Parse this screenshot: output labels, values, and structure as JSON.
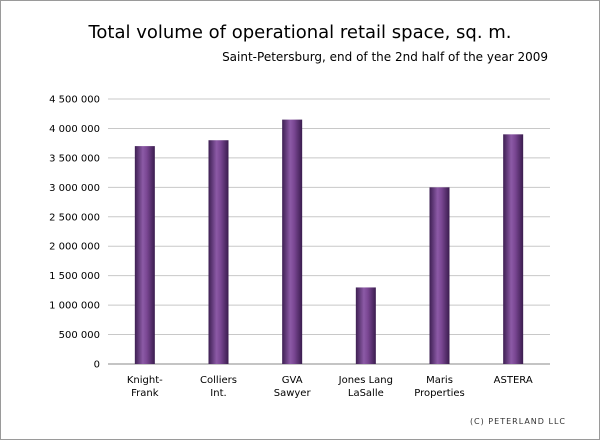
{
  "chart_data": {
    "type": "bar",
    "title": "Total volume of operational retail space, sq. m.",
    "subtitle": "Saint-Petersburg, end of the 2nd half of the year 2009",
    "credit": "(C) PETERLAND LLC",
    "categories": [
      [
        "Knight-",
        "Frank"
      ],
      [
        "Colliers",
        "Int."
      ],
      [
        "GVA",
        "Sawyer"
      ],
      [
        "Jones Lang",
        "LaSalle"
      ],
      [
        "Maris",
        "Properties"
      ],
      [
        "ASTERA"
      ]
    ],
    "values": [
      3700000,
      3800000,
      4150000,
      1300000,
      3000000,
      3900000
    ],
    "ylim": [
      0,
      4500000
    ],
    "yticks": [
      0,
      500000,
      1000000,
      1500000,
      2000000,
      2500000,
      3000000,
      3500000,
      4000000,
      4500000
    ],
    "ytick_labels": [
      "0",
      "500 000",
      "1 000 000",
      "1 500 000",
      "2 000 000",
      "2 500 000",
      "3 000 000",
      "3 500 000",
      "4 000 000",
      "4 500 000"
    ],
    "grid": true,
    "bar_color": "#6e3f87",
    "xlabel": "",
    "ylabel": ""
  }
}
